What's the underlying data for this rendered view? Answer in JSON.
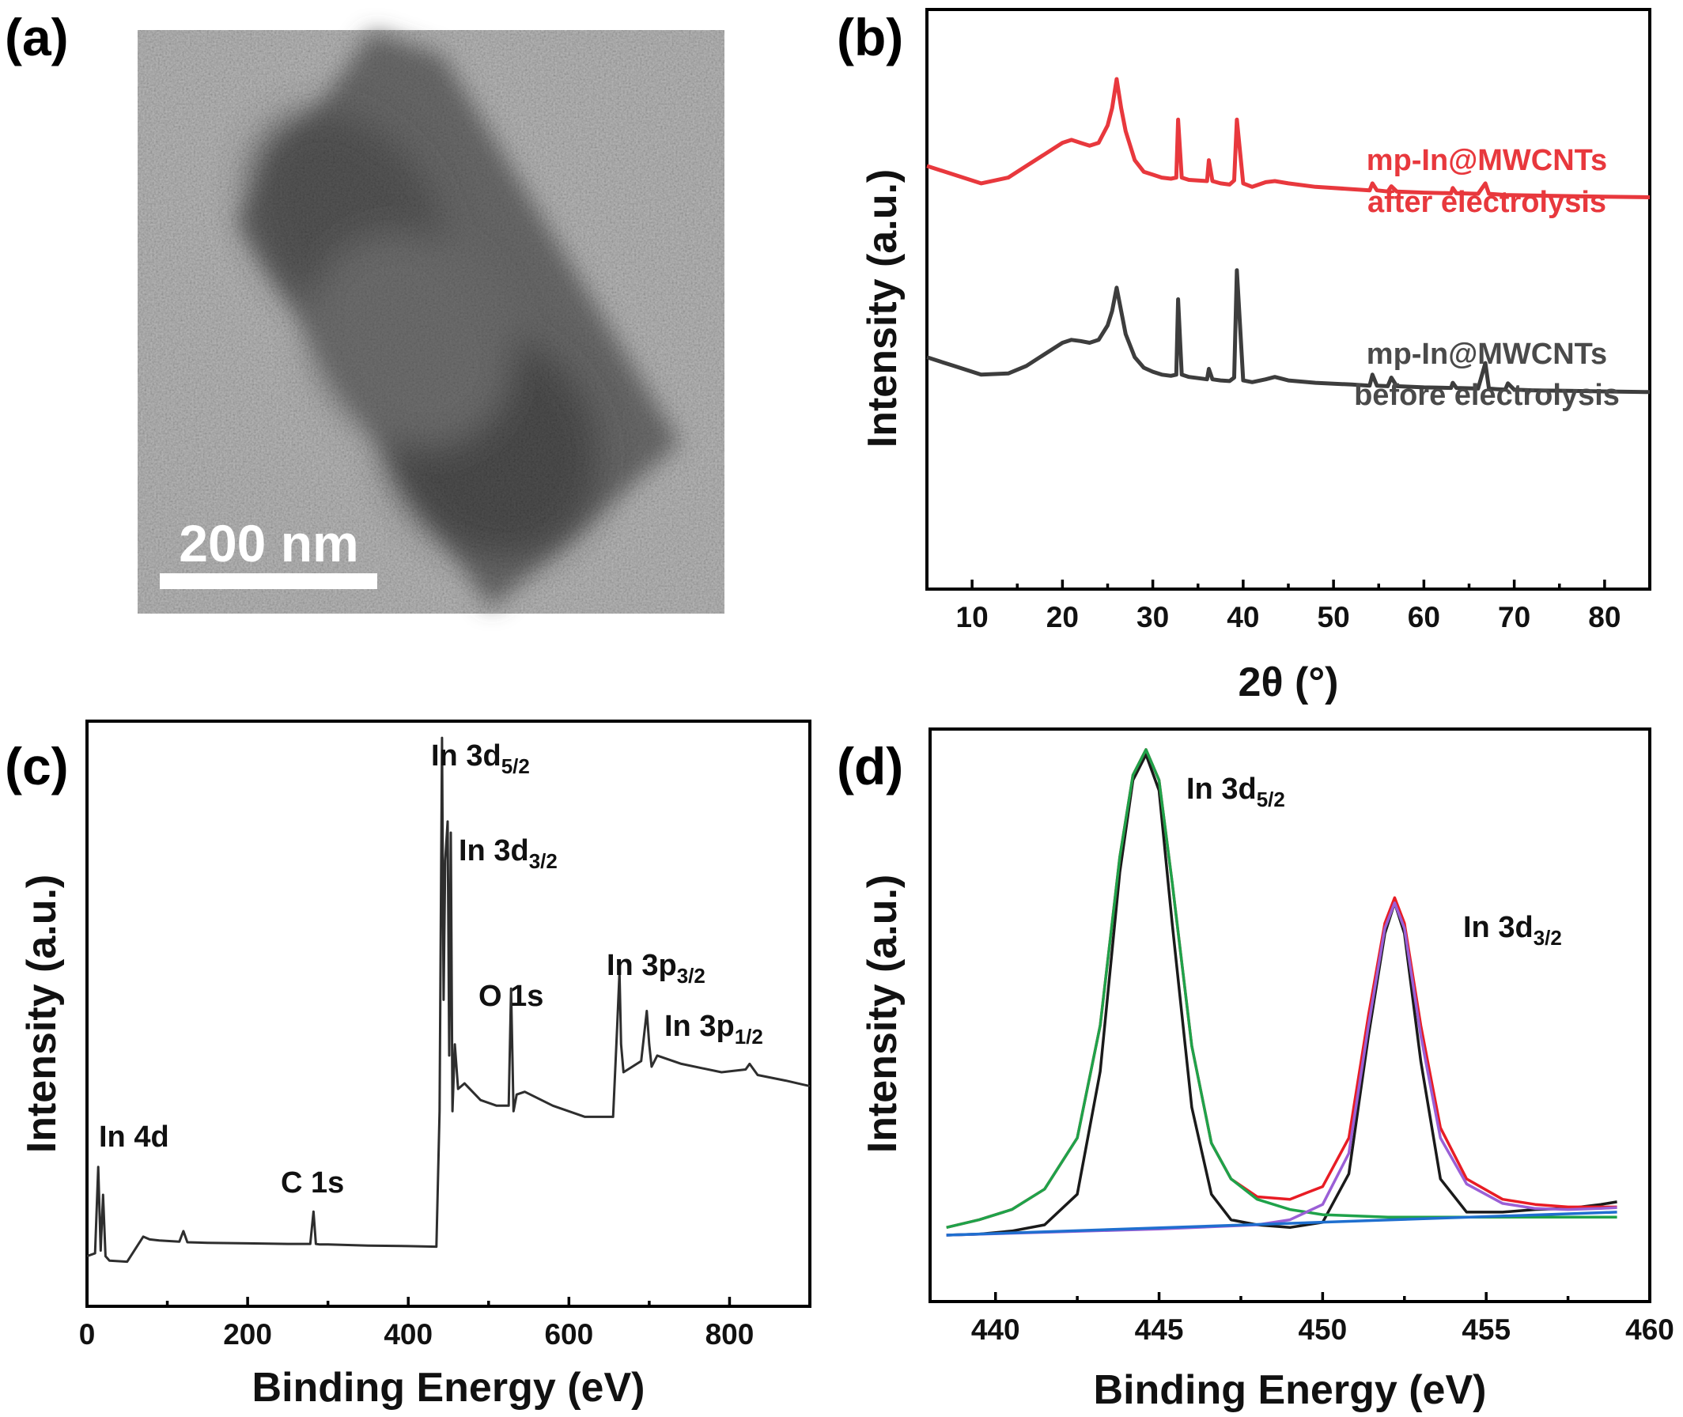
{
  "panels": {
    "a": {
      "label": "(a)",
      "scale_bar": "200 nm"
    },
    "b": {
      "label": "(b)",
      "legend_after": [
        "mp-In@MWCNTs",
        "after electrolysis"
      ],
      "legend_before": [
        "mp-In@MWCNTs",
        "before electrolysis"
      ]
    },
    "c": {
      "label": "(c)",
      "peaks": [
        {
          "name": "In 4d",
          "main": "In 4d",
          "sub": ""
        },
        {
          "name": "C 1s",
          "main": "C 1s",
          "sub": ""
        },
        {
          "name": "In 3d5/2",
          "main": "In 3d",
          "sub": "5/2"
        },
        {
          "name": "In 3d3/2",
          "main": "In 3d",
          "sub": "3/2"
        },
        {
          "name": "O 1s",
          "main": "O 1s",
          "sub": ""
        },
        {
          "name": "In 3p3/2",
          "main": "In 3p",
          "sub": "3/2"
        },
        {
          "name": "In 3p1/2",
          "main": "In 3p",
          "sub": "1/2"
        }
      ]
    },
    "d": {
      "label": "(d)",
      "peaks": [
        {
          "name": "In 3d5/2",
          "main": "In 3d",
          "sub": "5/2"
        },
        {
          "name": "In 3d3/2",
          "main": "In 3d",
          "sub": "3/2"
        }
      ]
    }
  },
  "colors": {
    "after": "#e8383d",
    "before": "#3d3d3d",
    "survey": "#2e2e2e",
    "raw": "#1a1a1a",
    "envelope": "#e81c24",
    "fit_5_2": "#1fa24a",
    "fit_3_2": "#9a5fd6",
    "background": "#1f6fcf"
  },
  "chart_data": [
    {
      "panel": "b",
      "type": "line",
      "xlabel": "2θ (°)",
      "ylabel": "Intensity (a.u.)",
      "xlim": [
        5,
        85
      ],
      "xticks": [
        10,
        20,
        30,
        40,
        50,
        60,
        70,
        80
      ],
      "yticks": [],
      "series": [
        {
          "name": "mp-In@MWCNTs after electrolysis",
          "color": "#e8383d",
          "x": [
            5,
            8,
            11,
            14,
            16,
            18,
            20,
            21,
            22,
            23,
            24,
            25,
            25.5,
            26,
            26.5,
            27,
            28,
            29,
            30,
            31,
            32,
            32.6,
            32.8,
            33.2,
            34,
            35,
            36,
            36.2,
            36.6,
            37.5,
            38.5,
            39,
            39.3,
            40,
            41,
            42.5,
            43.5,
            45,
            48,
            52,
            54,
            54.3,
            54.8,
            56,
            56.4,
            57,
            60,
            63,
            63.2,
            63.6,
            66,
            66.8,
            67.2,
            68,
            69,
            72,
            76,
            80,
            85
          ],
          "y": [
            0.73,
            0.715,
            0.7,
            0.71,
            0.73,
            0.75,
            0.77,
            0.775,
            0.77,
            0.765,
            0.77,
            0.8,
            0.83,
            0.88,
            0.83,
            0.79,
            0.74,
            0.72,
            0.715,
            0.71,
            0.708,
            0.71,
            0.81,
            0.71,
            0.706,
            0.705,
            0.704,
            0.74,
            0.704,
            0.7,
            0.698,
            0.705,
            0.81,
            0.7,
            0.694,
            0.702,
            0.704,
            0.7,
            0.694,
            0.69,
            0.688,
            0.7,
            0.688,
            0.686,
            0.695,
            0.686,
            0.684,
            0.683,
            0.692,
            0.683,
            0.682,
            0.7,
            0.682,
            0.681,
            0.68,
            0.679,
            0.678,
            0.677,
            0.676
          ]
        },
        {
          "name": "mp-In@MWCNTs before electrolysis",
          "color": "#3d3d3d",
          "x": [
            5,
            8,
            11,
            14,
            16,
            18,
            20,
            21,
            22,
            23,
            24,
            25,
            25.5,
            26,
            26.5,
            27,
            28,
            29,
            30,
            31,
            32,
            32.6,
            32.8,
            33.2,
            34,
            35,
            36,
            36.2,
            36.6,
            37.5,
            38.5,
            39,
            39.3,
            40,
            41,
            42.5,
            43.5,
            45,
            48,
            52,
            54,
            54.3,
            54.8,
            56,
            56.4,
            57,
            60,
            63,
            63.2,
            63.6,
            66,
            66.8,
            67.2,
            68,
            69,
            69.3,
            70,
            72,
            76,
            80,
            85
          ],
          "y": [
            0.4,
            0.385,
            0.37,
            0.372,
            0.385,
            0.405,
            0.425,
            0.43,
            0.428,
            0.425,
            0.43,
            0.455,
            0.48,
            0.52,
            0.48,
            0.44,
            0.4,
            0.382,
            0.375,
            0.37,
            0.368,
            0.37,
            0.5,
            0.37,
            0.366,
            0.364,
            0.362,
            0.38,
            0.362,
            0.36,
            0.359,
            0.365,
            0.55,
            0.36,
            0.357,
            0.362,
            0.366,
            0.36,
            0.356,
            0.353,
            0.351,
            0.37,
            0.351,
            0.35,
            0.365,
            0.35,
            0.348,
            0.347,
            0.356,
            0.347,
            0.346,
            0.39,
            0.346,
            0.345,
            0.344,
            0.355,
            0.344,
            0.343,
            0.342,
            0.341,
            0.34
          ]
        }
      ]
    },
    {
      "panel": "c",
      "type": "line",
      "xlabel": "Binding Energy (eV)",
      "ylabel": "Intensity (a.u.)",
      "xlim": [
        0,
        900
      ],
      "xticks": [
        0,
        200,
        400,
        600,
        800
      ],
      "yticks": [],
      "series": [
        {
          "name": "survey",
          "color": "#2e2e2e",
          "x": [
            0,
            10,
            14,
            17,
            20,
            23,
            28,
            50,
            70,
            78,
            90,
            115,
            120,
            125,
            150,
            200,
            250,
            278,
            282,
            285,
            290,
            300,
            350,
            400,
            435,
            439,
            442,
            444,
            446,
            449,
            451,
            453,
            455,
            458,
            462,
            470,
            490,
            510,
            525,
            528,
            531,
            535,
            545,
            580,
            620,
            655,
            660,
            663,
            665,
            668,
            690,
            697,
            700,
            703,
            710,
            740,
            790,
            820,
            825,
            835,
            870,
            900
          ],
          "y": [
            0.04,
            0.045,
            0.2,
            0.05,
            0.15,
            0.04,
            0.032,
            0.03,
            0.075,
            0.07,
            0.068,
            0.066,
            0.085,
            0.065,
            0.064,
            0.063,
            0.062,
            0.062,
            0.12,
            0.062,
            0.061,
            0.061,
            0.059,
            0.058,
            0.057,
            0.3,
            0.97,
            0.5,
            0.75,
            0.82,
            0.4,
            0.8,
            0.3,
            0.42,
            0.34,
            0.35,
            0.32,
            0.31,
            0.31,
            0.52,
            0.3,
            0.33,
            0.335,
            0.31,
            0.29,
            0.29,
            0.45,
            0.55,
            0.42,
            0.37,
            0.39,
            0.48,
            0.42,
            0.38,
            0.4,
            0.385,
            0.37,
            0.375,
            0.385,
            0.365,
            0.355,
            0.345
          ]
        }
      ]
    },
    {
      "panel": "d",
      "type": "line",
      "xlabel": "Binding Energy (eV)",
      "ylabel": "Intensity (a.u.)",
      "xlim": [
        438,
        460
      ],
      "xticks": [
        440,
        445,
        450,
        455,
        460
      ],
      "yticks": [],
      "peak_fits": [
        {
          "name": "In 3d5/2",
          "center": 444.6,
          "height": 0.95,
          "fwhm": 1.5
        },
        {
          "name": "In 3d3/2",
          "center": 452.2,
          "height": 0.66,
          "fwhm": 1.4
        }
      ],
      "series": [
        {
          "name": "raw",
          "color": "#1a1a1a",
          "x": [
            438.5,
            439.5,
            440.5,
            441.5,
            442.5,
            443.2,
            443.8,
            444.2,
            444.6,
            445.0,
            445.4,
            446.0,
            446.6,
            447.2,
            448.0,
            449.0,
            450.0,
            450.8,
            451.4,
            451.9,
            452.2,
            452.5,
            453.0,
            453.6,
            454.4,
            455.5,
            456.5,
            457.5,
            458.5,
            459
          ],
          "y": [
            0.01,
            0.012,
            0.018,
            0.03,
            0.09,
            0.33,
            0.72,
            0.9,
            0.95,
            0.88,
            0.62,
            0.26,
            0.09,
            0.04,
            0.03,
            0.025,
            0.035,
            0.13,
            0.4,
            0.6,
            0.66,
            0.6,
            0.35,
            0.12,
            0.055,
            0.055,
            0.06,
            0.062,
            0.07,
            0.075
          ]
        },
        {
          "name": "envelope",
          "color": "#e81c24",
          "x": [
            438.5,
            439.5,
            440.5,
            441.5,
            442.5,
            443.2,
            443.8,
            444.2,
            444.6,
            445.0,
            445.4,
            446.0,
            446.6,
            447.2,
            448.0,
            449.0,
            450.0,
            450.8,
            451.4,
            451.9,
            452.2,
            452.5,
            453.0,
            453.6,
            454.4,
            455.5,
            456.5,
            457.5,
            458.5,
            459
          ],
          "y": [
            0.025,
            0.04,
            0.06,
            0.1,
            0.2,
            0.42,
            0.75,
            0.91,
            0.96,
            0.9,
            0.7,
            0.38,
            0.19,
            0.12,
            0.085,
            0.08,
            0.105,
            0.2,
            0.44,
            0.62,
            0.67,
            0.62,
            0.42,
            0.22,
            0.12,
            0.08,
            0.07,
            0.065,
            0.065,
            0.065
          ]
        },
        {
          "name": "fit 3d5/2",
          "color": "#1fa24a",
          "x": [
            438.5,
            439.5,
            440.5,
            441.5,
            442.5,
            443.2,
            443.8,
            444.2,
            444.6,
            445.0,
            445.4,
            446.0,
            446.6,
            447.2,
            448.0,
            449.0,
            450.0,
            452.0,
            455.0,
            459
          ],
          "y": [
            0.025,
            0.04,
            0.06,
            0.1,
            0.2,
            0.42,
            0.75,
            0.91,
            0.96,
            0.9,
            0.7,
            0.38,
            0.19,
            0.12,
            0.08,
            0.06,
            0.05,
            0.045,
            0.045,
            0.045
          ]
        },
        {
          "name": "fit 3d3/2",
          "color": "#9a5fd6",
          "x": [
            438.5,
            445.0,
            448.0,
            449.0,
            450.0,
            450.8,
            451.4,
            451.9,
            452.2,
            452.5,
            453.0,
            453.6,
            454.4,
            455.5,
            456.5,
            457.5,
            458.5,
            459
          ],
          "y": [
            0.01,
            0.022,
            0.03,
            0.04,
            0.07,
            0.17,
            0.42,
            0.61,
            0.66,
            0.61,
            0.4,
            0.2,
            0.11,
            0.072,
            0.062,
            0.06,
            0.062,
            0.064
          ]
        },
        {
          "name": "background",
          "color": "#1f6fcf",
          "x": [
            438.5,
            459
          ],
          "y": [
            0.01,
            0.055
          ]
        }
      ]
    }
  ]
}
